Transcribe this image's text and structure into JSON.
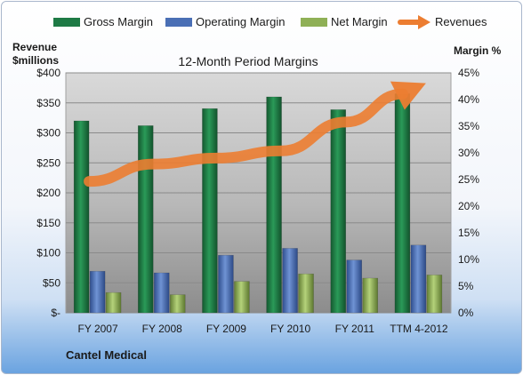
{
  "chart_data": {
    "type": "bar",
    "title": "12-Month Period Margins",
    "company": "Cantel Medical",
    "y_left_label": [
      "Revenue",
      "$millions"
    ],
    "y_right_label": "Margin %",
    "categories": [
      "FY 2007",
      "FY 2008",
      "FY 2009",
      "FY 2010",
      "FY 2011",
      "TTM 4-2012"
    ],
    "y_left_ticks": [
      "$-",
      "$50",
      "$100",
      "$150",
      "$200",
      "$250",
      "$300",
      "$350",
      "$400"
    ],
    "y_right_ticks": [
      "0%",
      "5%",
      "10%",
      "15%",
      "20%",
      "25%",
      "30%",
      "35%",
      "40%",
      "45%"
    ],
    "ylim_left": [
      0,
      400
    ],
    "ylim_right": [
      0,
      45
    ],
    "legend_position": "top",
    "series": [
      {
        "name": "Gross Margin",
        "axis": "right",
        "color": "#1e7a45",
        "values": [
          36,
          35.1,
          38.3,
          40.5,
          38.1,
          41.1
        ]
      },
      {
        "name": "Operating Margin",
        "axis": "right",
        "color": "#4a6fb5",
        "values": [
          7.8,
          7.5,
          10.8,
          12.1,
          9.9,
          12.7
        ]
      },
      {
        "name": "Net Margin",
        "axis": "right",
        "color": "#8fb056",
        "values": [
          3.8,
          3.4,
          5.9,
          7.3,
          6.5,
          7.1
        ]
      },
      {
        "name": "Revenues",
        "axis": "left",
        "type": "line",
        "color": "#ec7d31",
        "values": [
          219,
          248,
          258,
          270,
          318,
          365
        ]
      }
    ]
  }
}
